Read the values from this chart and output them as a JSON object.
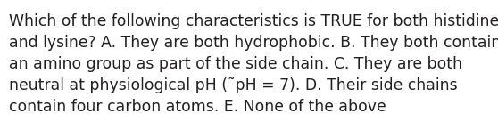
{
  "lines": [
    "Which of the following characteristics is TRUE for both histidine",
    "and lysine? A. They are both hydrophobic. B. They both contain",
    "an amino group as part of the side chain. C. They are both",
    "neutral at physiological pH (˜pH = 7). D. Their side chains",
    "contain four carbon atoms. E. None of the above"
  ],
  "background_color": "#ffffff",
  "text_color": "#231f20",
  "font_size": 12.4,
  "fig_width": 5.58,
  "fig_height": 1.46,
  "dpi": 100
}
